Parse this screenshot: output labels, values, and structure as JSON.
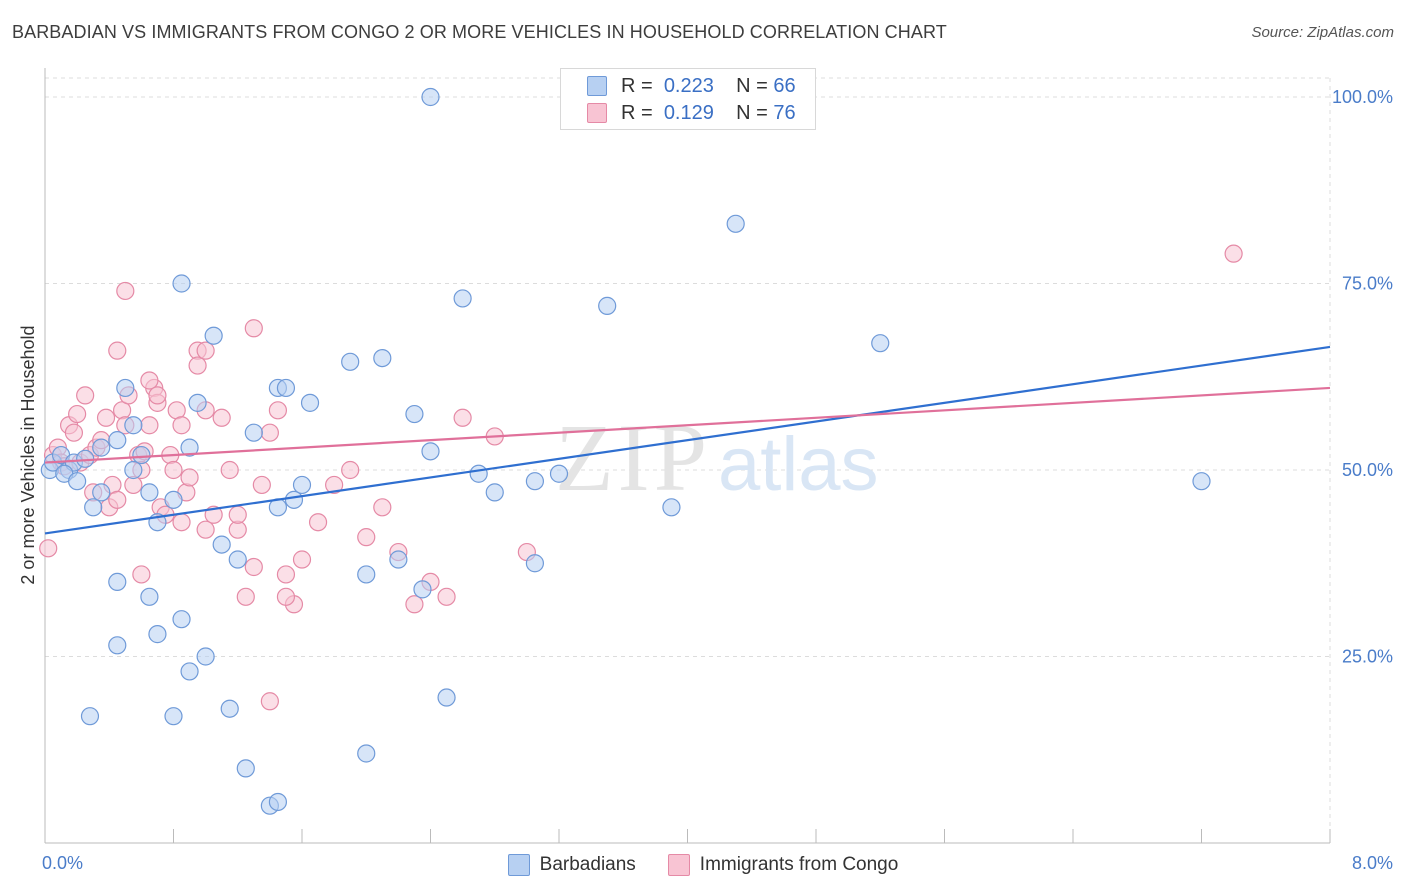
{
  "header": {
    "title": "BARBADIAN VS IMMIGRANTS FROM CONGO 2 OR MORE VEHICLES IN HOUSEHOLD CORRELATION CHART",
    "source": "Source: ZipAtlas.com"
  },
  "watermark": {
    "zip": "ZIP",
    "atlas": "atlas"
  },
  "legend_top": {
    "rows": [
      {
        "r_label": "R =",
        "r_value": "0.223",
        "n_label": "N =",
        "n_value": "66"
      },
      {
        "r_label": "R =",
        "r_value": "0.129",
        "n_label": "N =",
        "n_value": "76"
      }
    ]
  },
  "legend_bottom": {
    "items": [
      {
        "label": "Barbadians"
      },
      {
        "label": "Immigrants from Congo"
      }
    ]
  },
  "colors": {
    "blue_fill": "#b7d0f2",
    "blue_stroke": "#6f9ad8",
    "blue_line": "#2f6fd0",
    "pink_fill": "#f8c4d3",
    "pink_stroke": "#e58aa6",
    "pink_line": "#e0709a",
    "grid": "#dcdcdc",
    "axis_tick_text": "#4a7cc9"
  },
  "chart_data": {
    "type": "scatter",
    "title": "BARBADIAN VS IMMIGRANTS FROM CONGO 2 OR MORE VEHICLES IN HOUSEHOLD CORRELATION CHART",
    "xlabel": "",
    "ylabel": "2 or more Vehicles in Household",
    "xlim": [
      0,
      8
    ],
    "ylim": [
      0,
      100
    ],
    "x_ticks": [
      "0.0%",
      "8.0%"
    ],
    "y_ticks": [
      "25.0%",
      "50.0%",
      "75.0%",
      "100.0%"
    ],
    "y_tick_values": [
      25,
      50,
      75,
      100
    ],
    "grid": true,
    "legend_position": "top-center",
    "series": [
      {
        "name": "Barbadians",
        "color": "blue",
        "R": 0.223,
        "N": 66,
        "trend": {
          "x": [
            0,
            8
          ],
          "y": [
            41.5,
            66.5
          ]
        },
        "points": [
          [
            0.03,
            50
          ],
          [
            0.05,
            51
          ],
          [
            0.1,
            52
          ],
          [
            0.15,
            50
          ],
          [
            0.18,
            51
          ],
          [
            0.12,
            49.5
          ],
          [
            0.25,
            51.5
          ],
          [
            0.35,
            53
          ],
          [
            0.45,
            54
          ],
          [
            0.5,
            61
          ],
          [
            0.55,
            56
          ],
          [
            0.6,
            52
          ],
          [
            0.65,
            47
          ],
          [
            0.7,
            43
          ],
          [
            0.8,
            46
          ],
          [
            0.9,
            53
          ],
          [
            0.95,
            59
          ],
          [
            1.05,
            68
          ],
          [
            1.1,
            40
          ],
          [
            1.2,
            38
          ],
          [
            1.3,
            55
          ],
          [
            1.45,
            61
          ],
          [
            1.5,
            61
          ],
          [
            1.65,
            59
          ],
          [
            1.6,
            48
          ],
          [
            1.55,
            46
          ],
          [
            1.45,
            45
          ],
          [
            1.9,
            64.5
          ],
          [
            2.0,
            36
          ],
          [
            2.1,
            65
          ],
          [
            2.2,
            38
          ],
          [
            2.3,
            57.5
          ],
          [
            2.35,
            34
          ],
          [
            2.4,
            52.5
          ],
          [
            2.5,
            19.5
          ],
          [
            2.4,
            100
          ],
          [
            2.6,
            73
          ],
          [
            2.7,
            49.5
          ],
          [
            2.8,
            47
          ],
          [
            3.05,
            48.5
          ],
          [
            3.05,
            37.5
          ],
          [
            3.2,
            49.5
          ],
          [
            3.5,
            72
          ],
          [
            3.9,
            45
          ],
          [
            4.3,
            83
          ],
          [
            5.2,
            67
          ],
          [
            7.2,
            48.5
          ],
          [
            0.3,
            45
          ],
          [
            0.45,
            35
          ],
          [
            0.45,
            26.5
          ],
          [
            0.65,
            33
          ],
          [
            0.7,
            28
          ],
          [
            0.85,
            30
          ],
          [
            0.9,
            23
          ],
          [
            1.0,
            25
          ],
          [
            1.15,
            18
          ],
          [
            1.25,
            10
          ],
          [
            1.4,
            5
          ],
          [
            1.45,
            5.5
          ],
          [
            2.0,
            12
          ],
          [
            0.28,
            17
          ],
          [
            0.8,
            17
          ],
          [
            0.85,
            75
          ],
          [
            0.35,
            47
          ],
          [
            0.55,
            50
          ],
          [
            0.2,
            48.5
          ]
        ]
      },
      {
        "name": "Immigrants from Congo",
        "color": "pink",
        "R": 0.129,
        "N": 76,
        "trend": {
          "x": [
            0,
            8
          ],
          "y": [
            51,
            61
          ]
        },
        "points": [
          [
            0.02,
            39.5
          ],
          [
            0.05,
            52
          ],
          [
            0.08,
            53
          ],
          [
            0.1,
            51
          ],
          [
            0.12,
            50.5
          ],
          [
            0.15,
            56
          ],
          [
            0.18,
            55
          ],
          [
            0.2,
            57.5
          ],
          [
            0.22,
            51
          ],
          [
            0.25,
            60
          ],
          [
            0.28,
            52
          ],
          [
            0.3,
            47
          ],
          [
            0.32,
            53
          ],
          [
            0.35,
            54
          ],
          [
            0.38,
            57
          ],
          [
            0.4,
            45
          ],
          [
            0.42,
            48
          ],
          [
            0.45,
            46
          ],
          [
            0.48,
            58
          ],
          [
            0.5,
            56
          ],
          [
            0.52,
            60
          ],
          [
            0.55,
            48
          ],
          [
            0.58,
            52
          ],
          [
            0.6,
            50
          ],
          [
            0.62,
            52.5
          ],
          [
            0.65,
            56
          ],
          [
            0.68,
            61
          ],
          [
            0.7,
            59
          ],
          [
            0.72,
            45
          ],
          [
            0.75,
            44
          ],
          [
            0.78,
            52
          ],
          [
            0.8,
            50
          ],
          [
            0.82,
            58
          ],
          [
            0.85,
            43
          ],
          [
            0.88,
            47
          ],
          [
            0.9,
            49
          ],
          [
            0.95,
            66
          ],
          [
            1.0,
            58
          ],
          [
            1.05,
            44
          ],
          [
            1.1,
            57
          ],
          [
            1.15,
            50
          ],
          [
            1.2,
            42
          ],
          [
            1.25,
            33
          ],
          [
            1.3,
            69
          ],
          [
            1.35,
            48
          ],
          [
            1.4,
            55
          ],
          [
            1.45,
            58
          ],
          [
            1.5,
            36
          ],
          [
            1.55,
            32
          ],
          [
            1.6,
            38
          ],
          [
            1.7,
            43
          ],
          [
            1.8,
            48
          ],
          [
            1.9,
            50
          ],
          [
            2.0,
            41
          ],
          [
            2.1,
            45
          ],
          [
            2.2,
            39
          ],
          [
            2.3,
            32
          ],
          [
            2.4,
            35
          ],
          [
            2.5,
            33
          ],
          [
            2.6,
            57
          ],
          [
            2.8,
            54.5
          ],
          [
            3.0,
            39
          ],
          [
            7.4,
            79
          ],
          [
            0.6,
            36
          ],
          [
            0.5,
            74
          ],
          [
            0.45,
            66
          ],
          [
            0.65,
            62
          ],
          [
            0.95,
            64
          ],
          [
            1.0,
            66
          ],
          [
            1.2,
            44
          ],
          [
            1.3,
            37
          ],
          [
            1.0,
            42
          ],
          [
            1.5,
            33
          ],
          [
            1.4,
            19
          ],
          [
            0.85,
            56
          ],
          [
            0.7,
            60
          ]
        ]
      }
    ]
  }
}
